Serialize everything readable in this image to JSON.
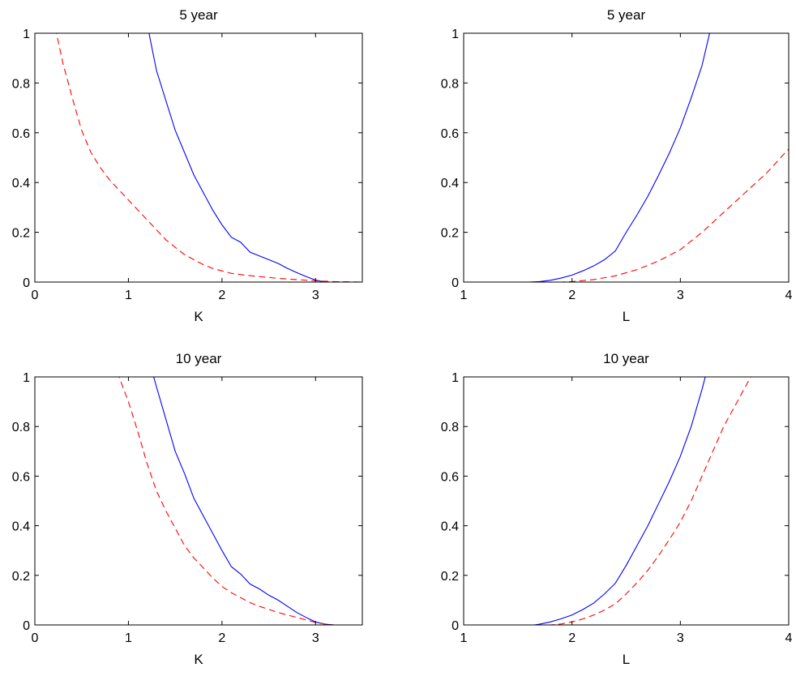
{
  "figure": {
    "background": "#ffffff"
  },
  "chart_data": [
    {
      "type": "line",
      "title": "5 year",
      "xlabel": "K",
      "ylabel": "",
      "xlim": [
        0,
        3.5
      ],
      "ylim": [
        0,
        1
      ],
      "xticks": [
        "0",
        "1",
        "2",
        "3"
      ],
      "yticks": [
        "0",
        "0.2",
        "0.4",
        "0.6",
        "0.8",
        "1"
      ],
      "grid": false,
      "series": [
        {
          "color": "#0000ff",
          "style": "solid",
          "points": [
            [
              1.2,
              1.05
            ],
            [
              1.22,
              1.0
            ],
            [
              1.3,
              0.85
            ],
            [
              1.4,
              0.73
            ],
            [
              1.5,
              0.61
            ],
            [
              1.6,
              0.52
            ],
            [
              1.7,
              0.43
            ],
            [
              1.8,
              0.36
            ],
            [
              1.9,
              0.29
            ],
            [
              2.0,
              0.23
            ],
            [
              2.1,
              0.18
            ],
            [
              2.2,
              0.16
            ],
            [
              2.3,
              0.12
            ],
            [
              2.4,
              0.105
            ],
            [
              2.5,
              0.09
            ],
            [
              2.6,
              0.075
            ],
            [
              2.7,
              0.055
            ],
            [
              2.8,
              0.038
            ],
            [
              2.9,
              0.022
            ],
            [
              3.0,
              0.008
            ],
            [
              3.1,
              0.0
            ],
            [
              3.2,
              0.0
            ],
            [
              3.5,
              0.0
            ]
          ]
        },
        {
          "color": "#ff0000",
          "style": "dashed",
          "points": [
            [
              0.2,
              1.02
            ],
            [
              0.23,
              1.0
            ],
            [
              0.3,
              0.88
            ],
            [
              0.4,
              0.74
            ],
            [
              0.5,
              0.61
            ],
            [
              0.6,
              0.52
            ],
            [
              0.7,
              0.46
            ],
            [
              0.8,
              0.41
            ],
            [
              0.9,
              0.37
            ],
            [
              1.0,
              0.33
            ],
            [
              1.1,
              0.29
            ],
            [
              1.2,
              0.25
            ],
            [
              1.3,
              0.21
            ],
            [
              1.4,
              0.17
            ],
            [
              1.5,
              0.14
            ],
            [
              1.6,
              0.11
            ],
            [
              1.7,
              0.09
            ],
            [
              1.8,
              0.07
            ],
            [
              1.9,
              0.055
            ],
            [
              2.0,
              0.045
            ],
            [
              2.1,
              0.035
            ],
            [
              2.2,
              0.03
            ],
            [
              2.4,
              0.022
            ],
            [
              2.6,
              0.015
            ],
            [
              2.8,
              0.01
            ],
            [
              3.0,
              0.005
            ],
            [
              3.2,
              0.002
            ],
            [
              3.5,
              0.0
            ]
          ]
        }
      ]
    },
    {
      "type": "line",
      "title": "5 year",
      "xlabel": "L",
      "ylabel": "",
      "xlim": [
        1,
        4
      ],
      "ylim": [
        0,
        1
      ],
      "xticks": [
        "1",
        "2",
        "3",
        "4"
      ],
      "yticks": [
        "0",
        "0.2",
        "0.4",
        "0.6",
        "0.8",
        "1"
      ],
      "grid": false,
      "series": [
        {
          "color": "#0000ff",
          "style": "solid",
          "points": [
            [
              1.0,
              0.0
            ],
            [
              1.6,
              0.0
            ],
            [
              1.7,
              0.002
            ],
            [
              1.8,
              0.007
            ],
            [
              1.9,
              0.016
            ],
            [
              2.0,
              0.028
            ],
            [
              2.1,
              0.045
            ],
            [
              2.2,
              0.065
            ],
            [
              2.3,
              0.09
            ],
            [
              2.4,
              0.125
            ],
            [
              2.5,
              0.2
            ],
            [
              2.6,
              0.27
            ],
            [
              2.7,
              0.345
            ],
            [
              2.8,
              0.43
            ],
            [
              2.9,
              0.52
            ],
            [
              3.0,
              0.62
            ],
            [
              3.1,
              0.74
            ],
            [
              3.2,
              0.87
            ],
            [
              3.27,
              1.0
            ],
            [
              3.3,
              1.05
            ]
          ]
        },
        {
          "color": "#ff0000",
          "style": "dashed",
          "points": [
            [
              1.0,
              0.0
            ],
            [
              1.9,
              0.0
            ],
            [
              2.0,
              0.002
            ],
            [
              2.2,
              0.01
            ],
            [
              2.4,
              0.025
            ],
            [
              2.6,
              0.05
            ],
            [
              2.8,
              0.085
            ],
            [
              3.0,
              0.13
            ],
            [
              3.2,
              0.2
            ],
            [
              3.4,
              0.28
            ],
            [
              3.6,
              0.36
            ],
            [
              3.8,
              0.44
            ],
            [
              4.0,
              0.535
            ]
          ]
        }
      ]
    },
    {
      "type": "line",
      "title": "10 year",
      "xlabel": "K",
      "ylabel": "",
      "xlim": [
        0,
        3.5
      ],
      "ylim": [
        0,
        1
      ],
      "xticks": [
        "0",
        "1",
        "2",
        "3"
      ],
      "yticks": [
        "0",
        "0.2",
        "0.4",
        "0.6",
        "0.8",
        "1"
      ],
      "grid": false,
      "series": [
        {
          "color": "#0000ff",
          "style": "solid",
          "points": [
            [
              1.25,
              1.05
            ],
            [
              1.27,
              1.0
            ],
            [
              1.3,
              0.96
            ],
            [
              1.4,
              0.83
            ],
            [
              1.5,
              0.7
            ],
            [
              1.6,
              0.61
            ],
            [
              1.7,
              0.51
            ],
            [
              1.8,
              0.44
            ],
            [
              1.9,
              0.37
            ],
            [
              2.0,
              0.3
            ],
            [
              2.1,
              0.235
            ],
            [
              2.2,
              0.205
            ],
            [
              2.3,
              0.165
            ],
            [
              2.4,
              0.145
            ],
            [
              2.5,
              0.12
            ],
            [
              2.6,
              0.1
            ],
            [
              2.7,
              0.075
            ],
            [
              2.8,
              0.05
            ],
            [
              2.9,
              0.03
            ],
            [
              3.0,
              0.012
            ],
            [
              3.1,
              0.003
            ],
            [
              3.2,
              0.0
            ],
            [
              3.5,
              0.0
            ]
          ]
        },
        {
          "color": "#ff0000",
          "style": "dashed",
          "points": [
            [
              0.88,
              1.02
            ],
            [
              0.9,
              1.0
            ],
            [
              1.0,
              0.9
            ],
            [
              1.1,
              0.78
            ],
            [
              1.2,
              0.65
            ],
            [
              1.3,
              0.54
            ],
            [
              1.4,
              0.46
            ],
            [
              1.5,
              0.39
            ],
            [
              1.6,
              0.32
            ],
            [
              1.7,
              0.27
            ],
            [
              1.8,
              0.23
            ],
            [
              1.9,
              0.19
            ],
            [
              2.0,
              0.155
            ],
            [
              2.1,
              0.13
            ],
            [
              2.2,
              0.11
            ],
            [
              2.3,
              0.09
            ],
            [
              2.4,
              0.075
            ],
            [
              2.5,
              0.063
            ],
            [
              2.6,
              0.05
            ],
            [
              2.7,
              0.04
            ],
            [
              2.8,
              0.03
            ],
            [
              2.9,
              0.02
            ],
            [
              3.0,
              0.01
            ],
            [
              3.1,
              0.004
            ],
            [
              3.2,
              0.0
            ],
            [
              3.5,
              0.0
            ]
          ]
        }
      ]
    },
    {
      "type": "line",
      "title": "10 year",
      "xlabel": "L",
      "ylabel": "",
      "xlim": [
        1,
        4
      ],
      "ylim": [
        0,
        1
      ],
      "xticks": [
        "1",
        "2",
        "3",
        "4"
      ],
      "yticks": [
        "0",
        "0.2",
        "0.4",
        "0.6",
        "0.8",
        "1"
      ],
      "grid": false,
      "series": [
        {
          "color": "#0000ff",
          "style": "solid",
          "points": [
            [
              1.0,
              0.0
            ],
            [
              1.65,
              0.0
            ],
            [
              1.7,
              0.003
            ],
            [
              1.8,
              0.012
            ],
            [
              1.9,
              0.025
            ],
            [
              2.0,
              0.04
            ],
            [
              2.1,
              0.062
            ],
            [
              2.2,
              0.088
            ],
            [
              2.3,
              0.125
            ],
            [
              2.4,
              0.168
            ],
            [
              2.5,
              0.24
            ],
            [
              2.6,
              0.32
            ],
            [
              2.7,
              0.4
            ],
            [
              2.8,
              0.49
            ],
            [
              2.9,
              0.58
            ],
            [
              3.0,
              0.68
            ],
            [
              3.1,
              0.8
            ],
            [
              3.2,
              0.95
            ],
            [
              3.23,
              1.0
            ],
            [
              3.26,
              1.05
            ]
          ]
        },
        {
          "color": "#ff0000",
          "style": "dashed",
          "points": [
            [
              1.0,
              0.0
            ],
            [
              1.8,
              0.0
            ],
            [
              1.9,
              0.004
            ],
            [
              2.0,
              0.012
            ],
            [
              2.1,
              0.024
            ],
            [
              2.2,
              0.04
            ],
            [
              2.3,
              0.06
            ],
            [
              2.4,
              0.085
            ],
            [
              2.5,
              0.125
            ],
            [
              2.6,
              0.17
            ],
            [
              2.7,
              0.22
            ],
            [
              2.8,
              0.28
            ],
            [
              2.9,
              0.345
            ],
            [
              3.0,
              0.415
            ],
            [
              3.1,
              0.5
            ],
            [
              3.2,
              0.6
            ],
            [
              3.3,
              0.7
            ],
            [
              3.4,
              0.8
            ],
            [
              3.5,
              0.88
            ],
            [
              3.6,
              0.96
            ],
            [
              3.65,
              1.0
            ],
            [
              3.7,
              1.05
            ]
          ]
        }
      ]
    }
  ]
}
